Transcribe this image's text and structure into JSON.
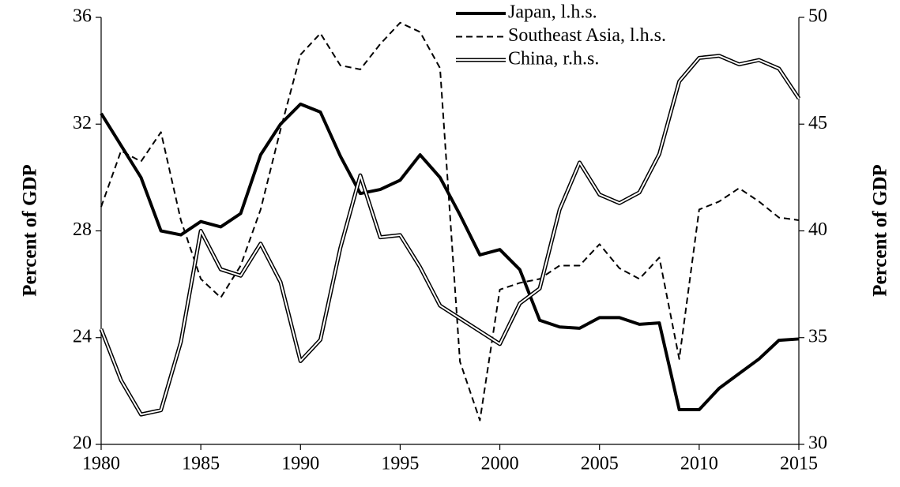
{
  "chart_data": {
    "type": "line",
    "x": [
      1980,
      1981,
      1982,
      1983,
      1984,
      1985,
      1986,
      1987,
      1988,
      1989,
      1990,
      1991,
      1992,
      1993,
      1994,
      1995,
      1996,
      1997,
      1998,
      1999,
      2000,
      2001,
      2002,
      2003,
      2004,
      2005,
      2006,
      2007,
      2008,
      2009,
      2010,
      2011,
      2012,
      2013,
      2014,
      2015
    ],
    "xlim": [
      1980,
      2015
    ],
    "xticks": [
      1980,
      1985,
      1990,
      1995,
      2000,
      2005,
      2010,
      2015
    ],
    "ylim": [
      20,
      36
    ],
    "yticks": [
      20,
      24,
      28,
      32,
      36
    ],
    "y2lim": [
      30,
      50
    ],
    "y2ticks": [
      30,
      35,
      40,
      45,
      50
    ],
    "ylabel": "Percent of GDP",
    "y2label": "Percent of GDP",
    "grid": false,
    "legend": "top",
    "series": [
      {
        "name": "Japan, l.h.s.",
        "color": "#000000",
        "style": "solid",
        "values": [
          32.4,
          31.2,
          30.0,
          28.0,
          27.85,
          28.35,
          28.15,
          28.65,
          30.85,
          32.0,
          32.75,
          32.45,
          30.8,
          29.4,
          29.55,
          29.9,
          30.85,
          30.0,
          28.6,
          27.1,
          27.3,
          26.55,
          24.65,
          24.4,
          24.35,
          24.75,
          24.75,
          24.5,
          24.55,
          21.3,
          21.3,
          22.1,
          22.65,
          23.2,
          23.9,
          23.95
        ]
      },
      {
        "name": "Southeast Asia, l.h.s.",
        "color": "#000000",
        "style": "dashed",
        "values": [
          28.9,
          31.0,
          30.6,
          31.7,
          28.4,
          26.2,
          25.5,
          26.7,
          28.8,
          31.8,
          34.6,
          35.4,
          34.2,
          34.05,
          35.0,
          35.8,
          35.45,
          34.1,
          23.1,
          20.9,
          25.8,
          26.05,
          26.2,
          26.7,
          26.7,
          27.5,
          26.6,
          26.2,
          27.0,
          23.2,
          28.8,
          29.1,
          29.6,
          29.1,
          28.5,
          28.4
        ]
      },
      {
        "name": "China, r.h.s.",
        "color": "#000000",
        "style": "double",
        "axis": "y2",
        "values": [
          35.4,
          33.0,
          31.4,
          31.6,
          34.8,
          40.0,
          38.2,
          37.9,
          39.4,
          37.6,
          33.9,
          34.9,
          39.2,
          42.6,
          39.7,
          39.8,
          38.3,
          36.5,
          35.9,
          35.3,
          34.7,
          36.6,
          37.3,
          41.0,
          43.2,
          41.7,
          41.3,
          41.8,
          43.6,
          47.0,
          48.1,
          48.2,
          47.8,
          48.0,
          47.6,
          46.2
        ]
      }
    ]
  }
}
